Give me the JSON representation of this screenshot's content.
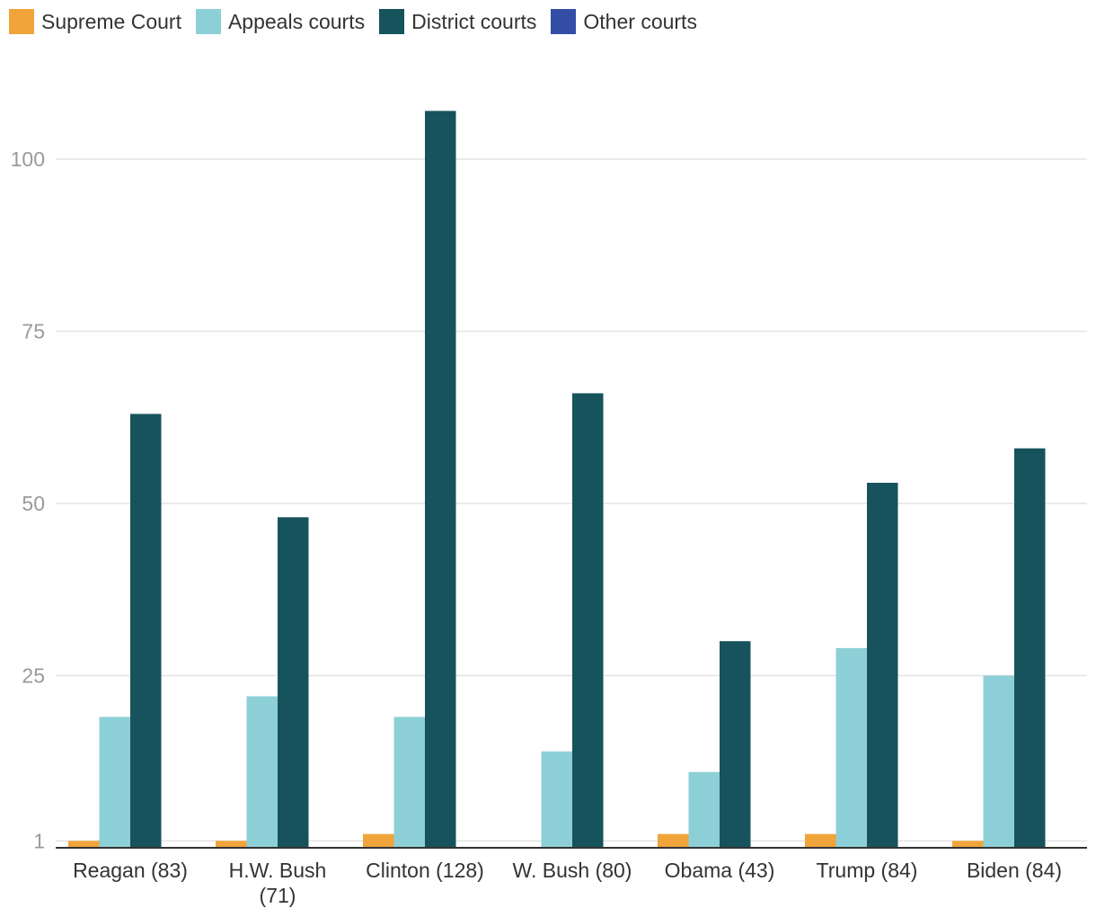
{
  "chart_data": {
    "type": "bar",
    "categories": [
      "Reagan (83)",
      "H.W. Bush (71)",
      "Clinton (128)",
      "W. Bush (80)",
      "Obama (43)",
      "Trump (84)",
      "Biden (84)"
    ],
    "category_lines": [
      [
        "Reagan (83)"
      ],
      [
        "H.W. Bush",
        "(71)"
      ],
      [
        "Clinton (128)"
      ],
      [
        "W. Bush (80)"
      ],
      [
        "Obama (43)"
      ],
      [
        "Trump (84)"
      ],
      [
        "Biden (84)"
      ]
    ],
    "series": [
      {
        "name": "Supreme Court",
        "color": "#f0a43a",
        "values": [
          1,
          1,
          2,
          0,
          2,
          2,
          1
        ]
      },
      {
        "name": "Appeals courts",
        "color": "#8dcfd7",
        "values": [
          19,
          22,
          19,
          14,
          11,
          29,
          25
        ]
      },
      {
        "name": "District courts",
        "color": "#17535c",
        "values": [
          63,
          48,
          107,
          66,
          30,
          53,
          58
        ]
      },
      {
        "name": "Other courts",
        "color": "#344ea8",
        "values": [
          0,
          0,
          0,
          0,
          0,
          0,
          0
        ]
      }
    ],
    "yticks": [
      1,
      25,
      50,
      75,
      100
    ],
    "ylim": [
      0,
      112
    ],
    "grid": true,
    "legend_position": "top-left",
    "xlabel": "",
    "ylabel": ""
  }
}
